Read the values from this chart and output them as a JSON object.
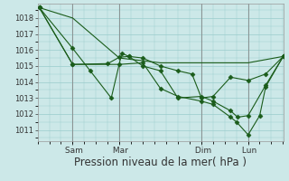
{
  "background_color": "#cce8e8",
  "grid_color": "#99cccc",
  "line_color": "#1a5c1a",
  "xlim": [
    0.0,
    7.0
  ],
  "ylim": [
    1010.3,
    1018.9
  ],
  "yticks": [
    1011,
    1012,
    1013,
    1014,
    1015,
    1016,
    1017,
    1018
  ],
  "xlabel": "Pression niveau de la mer( hPa )",
  "xlabel_fontsize": 8.5,
  "xtick_labels": [
    " Sam",
    " Mar",
    " Dim",
    " Lun"
  ],
  "xtick_positions": [
    1.0,
    2.33,
    4.67,
    6.0
  ],
  "series": [
    {
      "x": [
        0.05,
        1.0,
        2.33,
        3.5,
        4.67,
        5.5,
        6.0,
        7.0
      ],
      "y": [
        1018.65,
        1018.0,
        1015.5,
        1015.2,
        1015.2,
        1015.2,
        1015.2,
        1015.6
      ],
      "marker": null,
      "linestyle": "-",
      "linewidth": 0.8
    },
    {
      "x": [
        0.05,
        1.0,
        1.5,
        2.1,
        2.4,
        2.6,
        3.0,
        3.5,
        4.0,
        4.4,
        4.67,
        5.0,
        5.5,
        6.0,
        6.5,
        7.0
      ],
      "y": [
        1018.65,
        1016.1,
        1014.7,
        1013.0,
        1015.8,
        1015.6,
        1015.5,
        1015.0,
        1014.7,
        1014.5,
        1013.0,
        1013.1,
        1014.3,
        1014.1,
        1014.5,
        1015.6
      ],
      "marker": "D",
      "markersize": 2.5,
      "linestyle": "-",
      "linewidth": 0.8
    },
    {
      "x": [
        0.05,
        1.0,
        2.33,
        3.0,
        3.5,
        4.0,
        4.67,
        5.0,
        5.5,
        5.67,
        6.0,
        6.33,
        6.5,
        7.0
      ],
      "y": [
        1018.65,
        1015.1,
        1015.1,
        1015.2,
        1013.6,
        1013.1,
        1012.8,
        1012.6,
        1011.8,
        1011.5,
        1010.7,
        1011.9,
        1013.7,
        1015.6
      ],
      "marker": "D",
      "markersize": 2.5,
      "linestyle": "-",
      "linewidth": 0.8
    },
    {
      "x": [
        0.05,
        1.0,
        2.0,
        2.33,
        2.6,
        3.0,
        3.5,
        4.0,
        4.67,
        5.0,
        5.5,
        5.7,
        6.0,
        6.5,
        7.0
      ],
      "y": [
        1018.65,
        1015.1,
        1015.15,
        1015.55,
        1015.6,
        1015.0,
        1014.7,
        1013.0,
        1013.1,
        1012.8,
        1012.2,
        1011.8,
        1011.9,
        1013.8,
        1015.6
      ],
      "marker": "D",
      "markersize": 2.5,
      "linestyle": "-",
      "linewidth": 0.8
    }
  ],
  "vlines": [
    1.0,
    2.33,
    4.67,
    6.0
  ],
  "vline_color": "#888888",
  "vline_linewidth": 0.6,
  "tick_fontsize": 6,
  "ytick_label_color": "#333333"
}
